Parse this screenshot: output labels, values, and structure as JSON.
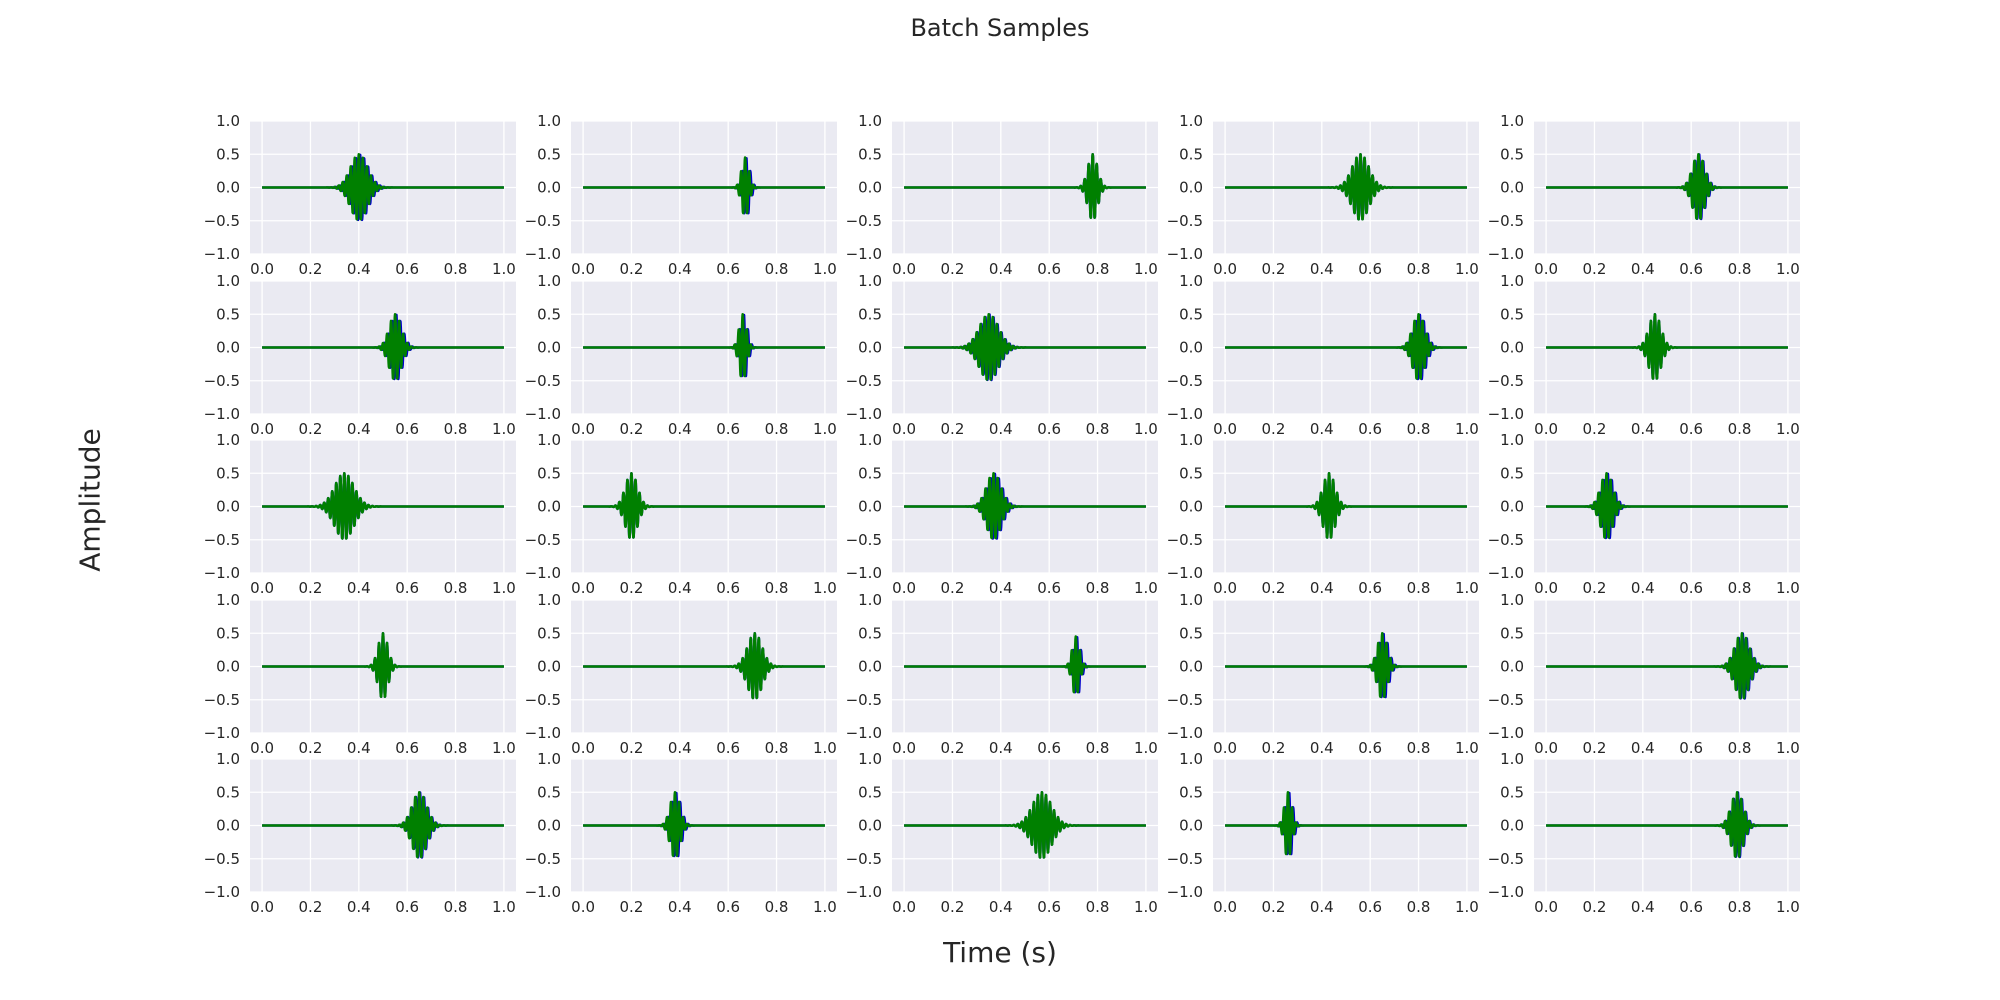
{
  "chart_data": {
    "type": "line",
    "title": "Batch Samples",
    "xlabel": "Time (s)",
    "ylabel": "Amplitude",
    "layout": {
      "rows": 5,
      "cols": 5
    },
    "grid": true,
    "xlim": [
      0.0,
      1.0
    ],
    "ylim": [
      -1.0,
      1.0
    ],
    "xticks": [
      "0.0",
      "0.2",
      "0.4",
      "0.6",
      "0.8",
      "1.0"
    ],
    "yticks": [
      "1.0",
      "0.5",
      "0.0",
      "-0.5",
      "-1.0"
    ],
    "colors": {
      "background": "#eaeaf2",
      "gridline": "#ffffff",
      "series_1": "#0000cc",
      "series_2": "#008000"
    },
    "series_names": [
      "",
      ""
    ],
    "panels": [
      {
        "center": 0.4,
        "offset": 0.005,
        "amplitude": 0.5,
        "width": 0.035,
        "frequency": 60
      },
      {
        "center": 0.67,
        "offset": 0.005,
        "amplitude": 0.45,
        "width": 0.015,
        "frequency": 60
      },
      {
        "center": 0.78,
        "offset": 0.0,
        "amplitude": 0.5,
        "width": 0.02,
        "frequency": 60
      },
      {
        "center": 0.56,
        "offset": 0.0,
        "amplitude": 0.5,
        "width": 0.035,
        "frequency": 60
      },
      {
        "center": 0.63,
        "offset": 0.003,
        "amplitude": 0.5,
        "width": 0.025,
        "frequency": 60
      },
      {
        "center": 0.55,
        "offset": 0.005,
        "amplitude": 0.5,
        "width": 0.025,
        "frequency": 60
      },
      {
        "center": 0.66,
        "offset": 0.005,
        "amplitude": 0.5,
        "width": 0.015,
        "frequency": 60
      },
      {
        "center": 0.35,
        "offset": 0.003,
        "amplitude": 0.5,
        "width": 0.04,
        "frequency": 60
      },
      {
        "center": 0.8,
        "offset": 0.005,
        "amplitude": 0.5,
        "width": 0.025,
        "frequency": 60
      },
      {
        "center": 0.45,
        "offset": 0.0,
        "amplitude": 0.5,
        "width": 0.025,
        "frequency": 60
      },
      {
        "center": 0.34,
        "offset": 0.0,
        "amplitude": 0.5,
        "width": 0.04,
        "frequency": 60
      },
      {
        "center": 0.2,
        "offset": 0.0,
        "amplitude": 0.5,
        "width": 0.025,
        "frequency": 60
      },
      {
        "center": 0.37,
        "offset": 0.005,
        "amplitude": 0.5,
        "width": 0.03,
        "frequency": 60
      },
      {
        "center": 0.43,
        "offset": 0.0,
        "amplitude": 0.5,
        "width": 0.025,
        "frequency": 60
      },
      {
        "center": 0.25,
        "offset": 0.005,
        "amplitude": 0.5,
        "width": 0.025,
        "frequency": 60
      },
      {
        "center": 0.5,
        "offset": 0.0,
        "amplitude": 0.5,
        "width": 0.02,
        "frequency": 60
      },
      {
        "center": 0.71,
        "offset": 0.0,
        "amplitude": 0.5,
        "width": 0.03,
        "frequency": 60
      },
      {
        "center": 0.71,
        "offset": 0.005,
        "amplitude": 0.45,
        "width": 0.015,
        "frequency": 60
      },
      {
        "center": 0.65,
        "offset": 0.005,
        "amplitude": 0.5,
        "width": 0.02,
        "frequency": 60
      },
      {
        "center": 0.81,
        "offset": 0.003,
        "amplitude": 0.5,
        "width": 0.03,
        "frequency": 60
      },
      {
        "center": 0.65,
        "offset": 0.003,
        "amplitude": 0.5,
        "width": 0.03,
        "frequency": 60
      },
      {
        "center": 0.38,
        "offset": 0.005,
        "amplitude": 0.5,
        "width": 0.02,
        "frequency": 60
      },
      {
        "center": 0.57,
        "offset": 0.0,
        "amplitude": 0.5,
        "width": 0.04,
        "frequency": 60
      },
      {
        "center": 0.26,
        "offset": 0.005,
        "amplitude": 0.5,
        "width": 0.015,
        "frequency": 60
      },
      {
        "center": 0.79,
        "offset": 0.003,
        "amplitude": 0.5,
        "width": 0.025,
        "frequency": 60
      }
    ]
  }
}
